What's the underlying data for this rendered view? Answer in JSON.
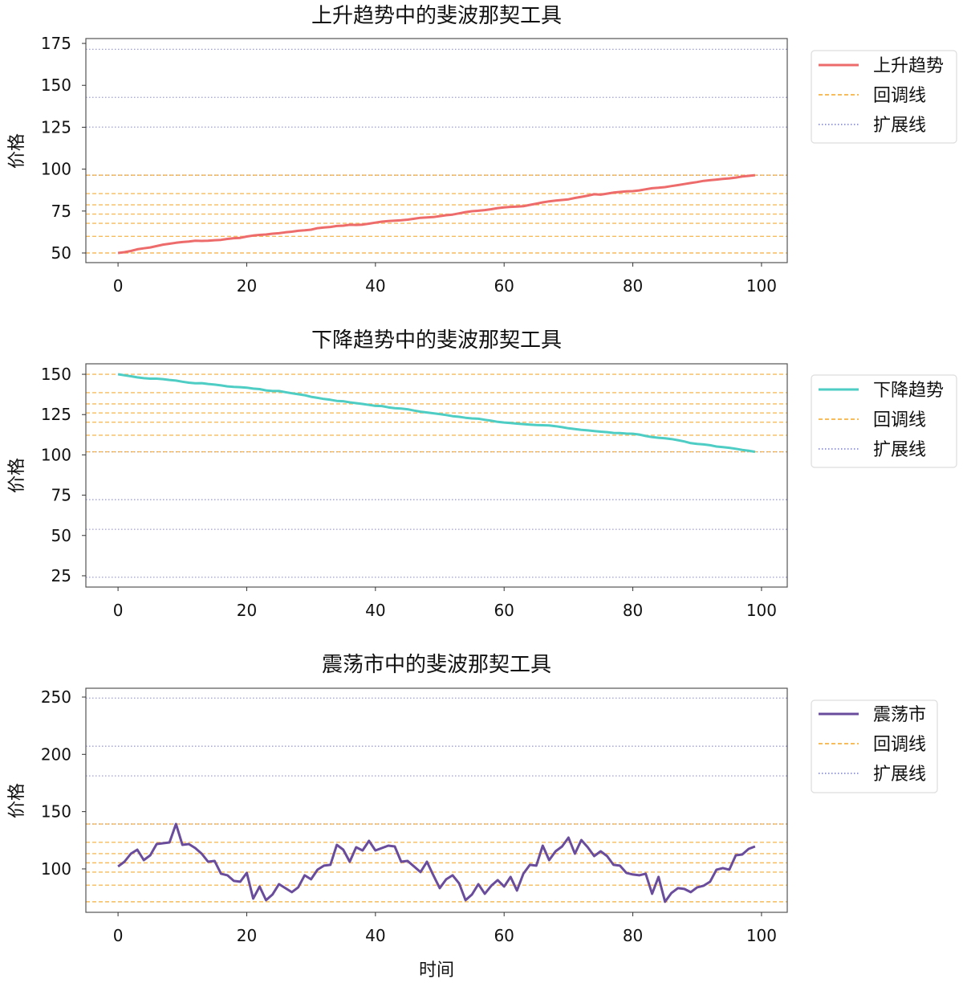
{
  "figure": {
    "xlabel": "时间"
  },
  "chart_data": [
    {
      "type": "line",
      "title": "上升趋势中的斐波那契工具",
      "xlabel": "",
      "ylabel": "价格",
      "xlim": [
        -5,
        104
      ],
      "ylim": [
        44.25,
        177.9
      ],
      "xticks": [
        0,
        20,
        40,
        60,
        80,
        100
      ],
      "yticks": [
        50,
        75,
        100,
        125,
        150,
        175
      ],
      "grid": false,
      "legend_position": "outside-right-top",
      "legend": [
        "上升趋势",
        "回调线",
        "扩展线"
      ],
      "series": [
        {
          "name": "上升趋势",
          "color": "#ee6b6b",
          "style": "solid",
          "x_start": 0,
          "values": [
            50.0,
            50.5,
            51.2,
            52.2,
            52.8,
            53.3,
            54.1,
            55.0,
            55.5,
            56.1,
            56.5,
            56.8,
            57.3,
            57.2,
            57.3,
            57.6,
            57.8,
            58.4,
            58.8,
            59.0,
            59.8,
            60.4,
            60.8,
            61.0,
            61.5,
            61.8,
            62.3,
            62.7,
            63.2,
            63.5,
            63.9,
            64.8,
            65.2,
            65.5,
            66.1,
            66.3,
            66.8,
            66.7,
            66.9,
            67.5,
            68.1,
            68.7,
            69.0,
            69.3,
            69.5,
            69.9,
            70.4,
            71.0,
            71.2,
            71.4,
            72.0,
            72.5,
            72.9,
            73.6,
            74.4,
            74.9,
            75.2,
            75.6,
            76.1,
            76.8,
            77.2,
            77.5,
            77.7,
            77.9,
            78.7,
            79.4,
            80.2,
            80.8,
            81.3,
            81.6,
            82.0,
            82.8,
            83.5,
            84.2,
            85.0,
            84.8,
            85.4,
            86.0,
            86.4,
            86.8,
            86.9,
            87.3,
            88.0,
            88.6,
            88.9,
            89.3,
            89.9,
            90.5,
            91.1,
            91.7,
            92.3,
            93.0,
            93.4,
            93.8,
            94.2,
            94.5,
            95.0,
            95.6,
            96.0,
            96.4
          ]
        }
      ],
      "retracement": {
        "color": "#f5a623",
        "style": "dashed",
        "ratios": [
          0,
          0.236,
          0.382,
          0.5,
          0.618,
          0.786,
          1.0
        ],
        "levels": [
          96.4,
          85.4,
          78.7,
          73.2,
          67.7,
          59.9,
          50.0
        ]
      },
      "extension": {
        "color": "#7a7ad6",
        "style": "dotted",
        "ratios": [
          1.0,
          1.618,
          2.0,
          2.618
        ],
        "levels": [
          96.4,
          125.1,
          142.8,
          171.5
        ]
      }
    },
    {
      "type": "line",
      "title": "下降趋势中的斐波那契工具",
      "xlabel": "",
      "ylabel": "价格",
      "xlim": [
        -5,
        104
      ],
      "ylim": [
        18.0,
        156.5
      ],
      "xticks": [
        0,
        20,
        40,
        60,
        80,
        100
      ],
      "yticks": [
        25,
        50,
        75,
        100,
        125,
        150
      ],
      "grid": false,
      "legend_position": "outside-right-top",
      "legend": [
        "下降趋势",
        "回调线",
        "扩展线"
      ],
      "series": [
        {
          "name": "下降趋势",
          "color": "#4ecdc4",
          "style": "solid",
          "x_start": 0,
          "values": [
            150.0,
            149.4,
            148.8,
            148.1,
            147.6,
            147.3,
            147.3,
            147.0,
            146.5,
            146.1,
            145.4,
            144.8,
            144.4,
            144.5,
            144.0,
            143.6,
            143.1,
            142.5,
            142.2,
            142.0,
            141.7,
            141.1,
            140.8,
            140.0,
            139.6,
            139.6,
            138.9,
            138.2,
            137.6,
            137.0,
            136.0,
            135.4,
            134.7,
            134.2,
            133.5,
            133.3,
            132.6,
            132.1,
            131.6,
            131.0,
            130.4,
            130.3,
            129.5,
            129.0,
            128.7,
            128.3,
            127.5,
            126.8,
            126.3,
            125.8,
            125.3,
            124.7,
            124.0,
            123.6,
            123.0,
            122.6,
            122.4,
            121.8,
            121.2,
            120.5,
            120.1,
            119.8,
            119.4,
            119.1,
            118.8,
            118.5,
            118.4,
            118.3,
            117.8,
            117.2,
            116.5,
            116.0,
            115.5,
            115.2,
            114.8,
            114.4,
            114.1,
            113.6,
            113.5,
            113.2,
            113.1,
            112.6,
            111.7,
            111.0,
            110.6,
            110.3,
            109.8,
            109.1,
            108.3,
            107.3,
            106.8,
            106.5,
            106.0,
            105.2,
            104.8,
            104.4,
            103.8,
            103.1,
            102.6,
            101.9
          ]
        }
      ],
      "retracement": {
        "color": "#f5a623",
        "style": "dashed",
        "ratios": [
          0,
          0.236,
          0.382,
          0.5,
          0.618,
          0.786,
          1.0
        ],
        "levels": [
          150.0,
          138.6,
          131.6,
          126.0,
          120.3,
          112.2,
          101.9
        ]
      },
      "extension": {
        "color": "#7a7ad6",
        "style": "dotted",
        "ratios": [
          1.0,
          1.618,
          2.0,
          2.618
        ],
        "levels": [
          101.9,
          72.2,
          53.8,
          24.1
        ]
      }
    },
    {
      "type": "line",
      "title": "震荡市中的斐波那契工具",
      "xlabel": "时间",
      "ylabel": "价格",
      "xlim": [
        -5,
        104
      ],
      "ylim": [
        62.1,
        257.7
      ],
      "xticks": [
        0,
        20,
        40,
        60,
        80,
        100
      ],
      "yticks": [
        100,
        150,
        200,
        250
      ],
      "grid": false,
      "legend_position": "outside-right-top",
      "legend": [
        "震荡市",
        "回调线",
        "扩展线"
      ],
      "series": [
        {
          "name": "震荡市",
          "color": "#6a4c9c",
          "style": "solid",
          "x_start": 0,
          "values": [
            102.1,
            106.3,
            113.3,
            116.8,
            107.7,
            111.9,
            121.7,
            122.4,
            123.1,
            139.2,
            121.0,
            121.7,
            118.2,
            113.3,
            106.3,
            107.0,
            95.8,
            94.4,
            89.5,
            88.8,
            96.5,
            74.1,
            84.6,
            72.7,
            77.6,
            86.7,
            83.2,
            79.7,
            83.9,
            94.4,
            90.9,
            99.3,
            102.8,
            103.5,
            121.0,
            116.8,
            106.3,
            118.9,
            116.1,
            124.5,
            116.1,
            118.2,
            120.3,
            119.6,
            106.3,
            107.0,
            102.1,
            97.2,
            106.3,
            94.4,
            83.2,
            90.9,
            94.4,
            87.4,
            72.7,
            77.6,
            86.7,
            78.3,
            85.3,
            90.2,
            84.6,
            93.0,
            81.1,
            95.8,
            103.5,
            102.8,
            120.3,
            107.7,
            115.4,
            119.6,
            127.3,
            113.3,
            125.2,
            118.9,
            111.2,
            115.4,
            111.2,
            103.5,
            102.8,
            96.5,
            95.1,
            94.4,
            95.8,
            78.3,
            93.0,
            71.3,
            79.0,
            83.2,
            82.5,
            79.7,
            83.9,
            85.3,
            88.8,
            99.3,
            100.7,
            99.3,
            111.9,
            112.6,
            117.5,
            119.6
          ]
        }
      ],
      "retracement": {
        "color": "#f5a623",
        "style": "dashed",
        "ratios": [
          0,
          0.236,
          0.382,
          0.5,
          0.618,
          0.786,
          1.0
        ],
        "levels": [
          139.2,
          123.2,
          113.3,
          105.3,
          97.2,
          85.8,
          71.3
        ]
      },
      "extension": {
        "color": "#7a7ad6",
        "style": "dotted",
        "ratios": [
          1.0,
          1.618,
          2.0,
          2.618
        ],
        "levels": [
          139.2,
          181.2,
          207.1,
          249.1
        ]
      }
    }
  ]
}
